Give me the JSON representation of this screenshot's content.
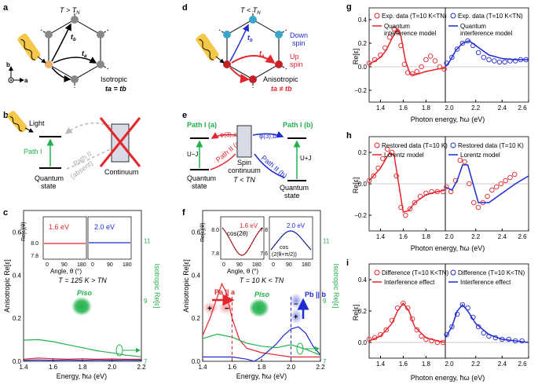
{
  "panel_labels": {
    "a": "a",
    "b": "b",
    "c": "c",
    "d": "d",
    "e": "e",
    "f": "f",
    "g": "g",
    "h": "h",
    "i": "i"
  },
  "panel_a": {
    "temp": "T > T",
    "temp_sub": "N",
    "ta": "t",
    "ta_sub": "a",
    "tb": "t",
    "tb_sub": "b",
    "axis_b": "b",
    "axis_a": "a",
    "iso_line1": "Isotropic",
    "iso_eq": "ta = tb"
  },
  "panel_b": {
    "light": "Light",
    "path1": "Path I",
    "path2": "Path II",
    "absent": "(absent)",
    "quantum_state": "Quantum",
    "quantum_state2": "state",
    "continuum": "Continuum"
  },
  "panel_d": {
    "temp": "T < T",
    "temp_sub": "N",
    "down_spin": "Down",
    "down_spin2": "spin",
    "up_spin": "Up",
    "up_spin2": "spin",
    "aniso": "Anisotropic",
    "aniso_eq": "ta ≠ tb"
  },
  "panel_e": {
    "path1a": "Path I (a)",
    "path1b": "Path I (b)",
    "path2a": "Path II (a)",
    "path2b": "Path II (b)",
    "phi_a": "φ(3),a",
    "phi_b": "φ(3),b",
    "uj_minus": "U−J",
    "uj_plus": "U+J",
    "spin_cont1": "Spin",
    "spin_cont2": "continuum",
    "spin_cont3": "T < TN",
    "qs_left1": "Quantum",
    "qs_left2": "state",
    "qs_right1": "Quantum",
    "qs_right2": "state"
  },
  "panel_c": {
    "inset_left_energy": "1.6 eV",
    "inset_right_energy": "2.0 eV",
    "inset_ylabel": "Re[ε](θ)",
    "inset_xlabel": "Angle, θ (°)",
    "inset_y_ticks": [
      "8.0",
      "7.8"
    ],
    "inset_x_ticks": [
      "0",
      "90",
      "180"
    ],
    "temp_label": "T = 125 K > TN",
    "p_iso": "Piso",
    "ylabel_left": "Anisotropic Re[ε]",
    "ylabel_right": "Isotropic Re[ε]",
    "xlabel": "Energy, ħω (eV)",
    "x_ticks": [
      "1.4",
      "1.6",
      "1.8",
      "2.0",
      "2.2"
    ],
    "y_ticks_left": [
      "0.0",
      "0.2",
      "0.4",
      "0.6"
    ],
    "y_ticks_right": [
      "7",
      "9",
      "11"
    ]
  },
  "panel_f": {
    "inset_left_energy": "1.6 eV",
    "inset_right_energy": "2.0 eV",
    "cos_left": "cos(2θ)",
    "cos_right_1": "cos",
    "cos_right_2": "(2(θ+π/2))",
    "inset_ylabel": "Re[ε](θ)",
    "inset_xlabel": "Angle, θ (°)",
    "inset_y_ticks": [
      "8.0",
      "7.8"
    ],
    "inset_y_ticks_right": [
      "7.8",
      "7.6"
    ],
    "inset_x_ticks": [
      "0",
      "90",
      "180"
    ],
    "temp_label": "T = 10 K < TN",
    "pa": "Pa || a",
    "pb": "Pb || b",
    "p_iso": "Piso",
    "ylabel_left": "Anisotropic Re[ε]",
    "ylabel_right": "Isotropic Re[ε]",
    "xlabel": "Energy, ħω (eV)",
    "x_ticks": [
      "1.4",
      "1.6",
      "1.8",
      "2.0",
      "2.2"
    ],
    "y_ticks_left": [
      "0.0",
      "0.2",
      "0.4",
      "0.6"
    ],
    "y_ticks_right": [
      "7",
      "9",
      "11"
    ]
  },
  "panel_g": {
    "legend_exp_left": "Exp. data (T=10 K<TN)",
    "legend_model_left_1": "Quantum",
    "legend_model_left_2": "interference model",
    "legend_exp_right": "Exp. data (T=10 K<TN)",
    "legend_model_right_1": "Quantum",
    "legend_model_right_2": "interference model",
    "ylabel": "Re[ε]",
    "xlabel": "Photon energy, ħω (eV)",
    "y_ticks": [
      "0.4",
      "0.2",
      "0.0",
      "−0.2"
    ],
    "x_ticks_left": [
      "1.4",
      "1.6",
      "1.8"
    ],
    "x_ticks_right": [
      "2.2",
      "2.4",
      "2.6"
    ],
    "x_tick_mid": "2.0"
  },
  "panel_h": {
    "legend_exp_left": "Restored data (T=10 K)",
    "legend_model_left": "Lorentz model",
    "legend_exp_right": "Restored data (T=10 K)",
    "legend_model_right": "Lorentz model",
    "ylabel": "Re[ε]",
    "xlabel": "Photon energy, ħω (eV)",
    "y_ticks": [
      "0.2",
      "0.0",
      "−0.2"
    ],
    "x_ticks_left": [
      "1.4",
      "1.6",
      "1.8"
    ],
    "x_ticks_right": [
      "2.2",
      "2.4",
      "2.6"
    ],
    "x_tick_mid": "2.0"
  },
  "panel_i": {
    "legend_exp_left": "Difference (T=10 K<TN)",
    "legend_model_left": "Interference effect",
    "legend_exp_right": "Difference (T=10 K<TN)",
    "legend_model_right": "Interference effect",
    "ylabel": "Re[ε]",
    "xlabel": "Photon energy, ħω (eV)",
    "y_ticks": [
      "0.4",
      "0.2",
      "0.0"
    ],
    "x_ticks_left": [
      "1.4",
      "1.6",
      "1.8"
    ],
    "x_ticks_right": [
      "2.2",
      "2.4",
      "2.6"
    ],
    "x_tick_mid": "2.0"
  },
  "colors": {
    "red": "#e4252b",
    "blue": "#1f2bd1",
    "green": "#22b24c",
    "orange": "#f2a33a",
    "gray": "#777777",
    "light_red": "#f08a8c",
    "light_blue": "#8a90e8"
  },
  "chart_data": [
    {
      "id": "c",
      "type": "line",
      "title": "T = 125 K > TN",
      "xlabel": "Energy, ħω (eV)",
      "ylabel": "Anisotropic Re[ε]",
      "ylabel_right": "Isotropic Re[ε]",
      "xlim": [
        1.4,
        2.2
      ],
      "ylim": [
        0.0,
        0.7
      ],
      "ylim_right": [
        7,
        12
      ],
      "series": [
        {
          "name": "anisotropic red",
          "axis": "left",
          "x": [
            1.4,
            1.5,
            1.6,
            1.7,
            1.8,
            1.9,
            2.0,
            2.1,
            2.2
          ],
          "y": [
            0.01,
            0.015,
            0.012,
            0.01,
            0.012,
            0.01,
            0.011,
            0.01,
            0.01
          ]
        },
        {
          "name": "anisotropic blue",
          "axis": "left",
          "x": [
            1.4,
            1.5,
            1.6,
            1.7,
            1.8,
            1.9,
            2.0,
            2.1,
            2.2
          ],
          "y": [
            0.005,
            0.006,
            0.005,
            0.006,
            0.005,
            0.006,
            0.005,
            0.006,
            0.005
          ]
        },
        {
          "name": "isotropic green",
          "axis": "right",
          "x": [
            1.4,
            1.5,
            1.6,
            1.7,
            1.8,
            1.9,
            2.0,
            2.1,
            2.2
          ],
          "y": [
            7.7,
            7.72,
            7.65,
            7.55,
            7.45,
            7.35,
            7.28,
            7.2,
            7.15
          ]
        }
      ]
    },
    {
      "id": "f",
      "type": "line",
      "title": "T = 10 K < TN",
      "xlabel": "Energy, ħω (eV)",
      "ylabel": "Anisotropic Re[ε]",
      "ylabel_right": "Isotropic Re[ε]",
      "xlim": [
        1.4,
        2.2
      ],
      "ylim": [
        0.0,
        0.7
      ],
      "ylim_right": [
        7,
        12
      ],
      "series": [
        {
          "name": "anisotropic red (a)",
          "axis": "left",
          "x": [
            1.4,
            1.45,
            1.5,
            1.53,
            1.56,
            1.6,
            1.65,
            1.7,
            1.8,
            1.9,
            2.0,
            2.1,
            2.2
          ],
          "y": [
            0.12,
            0.2,
            0.3,
            0.36,
            0.32,
            0.2,
            0.1,
            0.06,
            0.04,
            0.03,
            0.02,
            0.02,
            0.02
          ]
        },
        {
          "name": "anisotropic blue (b)",
          "axis": "left",
          "x": [
            1.4,
            1.5,
            1.6,
            1.7,
            1.75,
            1.8,
            1.9,
            1.95,
            2.0,
            2.05,
            2.1,
            2.15,
            2.2
          ],
          "y": [
            0.02,
            0.02,
            0.02,
            0.01,
            0.0,
            0.02,
            0.08,
            0.12,
            0.15,
            0.16,
            0.13,
            0.07,
            0.03
          ]
        },
        {
          "name": "isotropic green",
          "axis": "right",
          "x": [
            1.4,
            1.5,
            1.6,
            1.7,
            1.8,
            1.9,
            2.0,
            2.1,
            2.2
          ],
          "y": [
            7.75,
            7.9,
            7.8,
            7.6,
            7.5,
            7.45,
            7.55,
            7.4,
            7.2
          ]
        }
      ],
      "markers": [
        1.6,
        2.0
      ]
    },
    {
      "id": "g",
      "type": "line",
      "xlabel": "Photon energy, ħω (eV)",
      "ylabel": "Re[ε]",
      "xlim_left": [
        1.3,
        1.97
      ],
      "xlim_right": [
        1.97,
        2.6
      ],
      "ylim": [
        -0.3,
        0.5
      ],
      "series": [
        {
          "name": "Exp. data red",
          "style": "markers",
          "x": [
            1.3,
            1.35,
            1.4,
            1.44,
            1.48,
            1.52,
            1.55,
            1.58,
            1.61,
            1.64,
            1.68,
            1.72,
            1.76,
            1.8,
            1.84,
            1.88,
            1.92,
            1.96
          ],
          "y": [
            0.03,
            0.06,
            0.1,
            0.16,
            0.25,
            0.32,
            0.3,
            0.18,
            0.02,
            -0.05,
            -0.06,
            -0.04,
            0.0,
            0.06,
            0.09,
            0.05,
            0.0,
            -0.02
          ]
        },
        {
          "name": "Quantum interference model red",
          "style": "line",
          "x": [
            1.3,
            1.4,
            1.45,
            1.5,
            1.55,
            1.58,
            1.62,
            1.66,
            1.7,
            1.8,
            1.9,
            1.97
          ],
          "y": [
            0.02,
            0.08,
            0.14,
            0.24,
            0.32,
            0.26,
            0.05,
            -0.06,
            -0.07,
            -0.04,
            -0.02,
            -0.01
          ]
        },
        {
          "name": "Exp. data blue",
          "style": "markers",
          "x": [
            1.98,
            2.02,
            2.06,
            2.1,
            2.14,
            2.18,
            2.22,
            2.26,
            2.3,
            2.34,
            2.38,
            2.42,
            2.46,
            2.5,
            2.54,
            2.58
          ],
          "y": [
            0.03,
            0.08,
            0.15,
            0.2,
            0.22,
            0.18,
            0.12,
            0.08,
            0.06,
            0.05,
            0.04,
            0.04,
            0.05,
            0.05,
            0.06,
            0.06
          ]
        },
        {
          "name": "Quantum interference model blue",
          "style": "line",
          "x": [
            1.97,
            2.0,
            2.05,
            2.1,
            2.15,
            2.2,
            2.3,
            2.4,
            2.5,
            2.6
          ],
          "y": [
            0.0,
            0.04,
            0.14,
            0.2,
            0.22,
            0.18,
            0.1,
            0.07,
            0.06,
            0.06
          ]
        }
      ]
    },
    {
      "id": "h",
      "type": "line",
      "xlabel": "Photon energy, ħω (eV)",
      "ylabel": "Re[ε]",
      "xlim_left": [
        1.3,
        1.97
      ],
      "xlim_right": [
        1.97,
        2.6
      ],
      "ylim": [
        -0.3,
        0.3
      ],
      "series": [
        {
          "name": "Restored data red",
          "style": "markers",
          "x": [
            1.3,
            1.34,
            1.38,
            1.42,
            1.46,
            1.5,
            1.54,
            1.58,
            1.62,
            1.66,
            1.7,
            1.75,
            1.8,
            1.85,
            1.9,
            1.95
          ],
          "y": [
            0.02,
            0.05,
            0.1,
            0.16,
            0.22,
            0.2,
            0.05,
            -0.15,
            -0.2,
            -0.16,
            -0.12,
            -0.08,
            -0.06,
            -0.05,
            -0.05,
            -0.05
          ]
        },
        {
          "name": "Lorentz model red",
          "style": "line",
          "x": [
            1.3,
            1.4,
            1.48,
            1.52,
            1.56,
            1.6,
            1.65,
            1.7,
            1.8,
            1.9,
            1.97
          ],
          "y": [
            0.02,
            0.1,
            0.2,
            0.18,
            0.0,
            -0.18,
            -0.17,
            -0.12,
            -0.07,
            -0.05,
            -0.04
          ]
        },
        {
          "name": "Restored data blue",
          "style": "markers",
          "x": [
            1.98,
            2.02,
            2.06,
            2.1,
            2.14,
            2.18,
            2.22,
            2.26,
            2.3,
            2.34,
            2.38,
            2.42,
            2.46,
            2.5,
            2.54,
            2.58
          ],
          "y": [
            -0.02,
            -0.05,
            0.02,
            0.15,
            0.14,
            0.0,
            -0.12,
            -0.15,
            -0.12,
            -0.08,
            -0.04,
            -0.02,
            0.0,
            0.02,
            0.04,
            0.06
          ]
        },
        {
          "name": "Lorentz model blue",
          "style": "line",
          "x": [
            1.97,
            2.02,
            2.06,
            2.1,
            2.14,
            2.18,
            2.22,
            2.3,
            2.4,
            2.5,
            2.6
          ],
          "y": [
            -0.02,
            -0.04,
            0.02,
            0.12,
            0.12,
            0.0,
            -0.12,
            -0.12,
            -0.06,
            0.0,
            0.05
          ]
        }
      ]
    },
    {
      "id": "i",
      "type": "line",
      "xlabel": "Photon energy, ħω (eV)",
      "ylabel": "Re[ε]",
      "xlim_left": [
        1.3,
        1.97
      ],
      "xlim_right": [
        1.97,
        2.6
      ],
      "ylim": [
        -0.1,
        0.5
      ],
      "series": [
        {
          "name": "Difference red",
          "style": "markers",
          "x": [
            1.3,
            1.35,
            1.4,
            1.45,
            1.5,
            1.55,
            1.6,
            1.64,
            1.68,
            1.72,
            1.76,
            1.8,
            1.85,
            1.9,
            1.95
          ],
          "y": [
            0.02,
            0.03,
            0.05,
            0.08,
            0.14,
            0.22,
            0.25,
            0.22,
            0.15,
            0.08,
            0.04,
            0.02,
            0.01,
            0.0,
            0.0
          ]
        },
        {
          "name": "Interference effect red",
          "style": "line",
          "x": [
            1.3,
            1.4,
            1.5,
            1.55,
            1.6,
            1.65,
            1.7,
            1.8,
            1.9,
            1.97
          ],
          "y": [
            0.01,
            0.04,
            0.12,
            0.2,
            0.25,
            0.2,
            0.1,
            0.03,
            0.01,
            0.0
          ]
        },
        {
          "name": "Difference blue",
          "style": "markers",
          "x": [
            1.98,
            2.02,
            2.06,
            2.1,
            2.14,
            2.18,
            2.22,
            2.26,
            2.3,
            2.35,
            2.4,
            2.45,
            2.5,
            2.55
          ],
          "y": [
            0.05,
            0.1,
            0.18,
            0.24,
            0.22,
            0.16,
            0.1,
            0.06,
            0.04,
            0.03,
            0.02,
            0.02,
            0.01,
            0.01
          ]
        },
        {
          "name": "Interference effect blue",
          "style": "line",
          "x": [
            1.97,
            2.02,
            2.06,
            2.1,
            2.14,
            2.2,
            2.3,
            2.4,
            2.5,
            2.6
          ],
          "y": [
            0.03,
            0.1,
            0.2,
            0.24,
            0.2,
            0.12,
            0.05,
            0.02,
            0.01,
            0.0
          ]
        }
      ]
    }
  ]
}
